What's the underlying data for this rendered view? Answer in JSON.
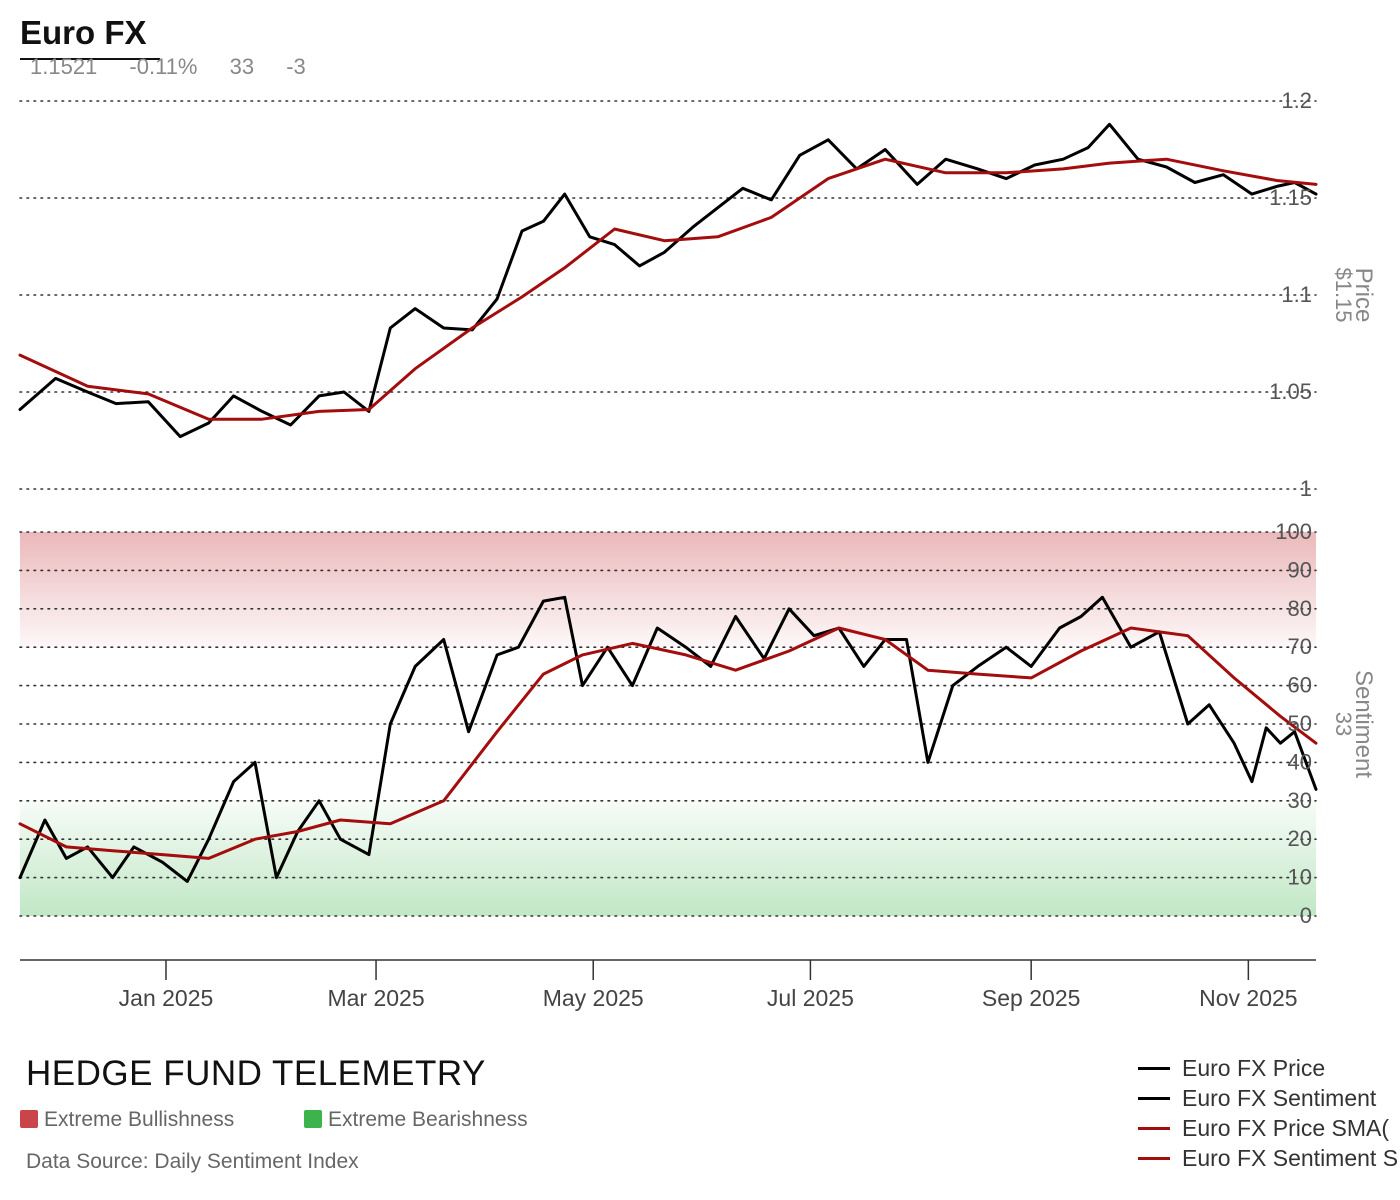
{
  "header": {
    "title": "Euro FX",
    "price": "1.1521",
    "change_pct": "-0.11%",
    "sentiment": "33",
    "sentiment_change": "-3"
  },
  "footer": {
    "brand": "HEDGE FUND TELEMETRY",
    "bull_label": "Extreme Bullishness",
    "bear_label": "Extreme Bearishness",
    "source": "Data Source: Daily Sentiment Index"
  },
  "legend": [
    {
      "label": "Euro FX Price",
      "color": "#000000"
    },
    {
      "label": "Euro FX Sentiment",
      "color": "#000000"
    },
    {
      "label": "Euro FX Price SMA(",
      "color": "#a30d0d"
    },
    {
      "label": "Euro FX Sentiment S",
      "color": "#a30d0d"
    }
  ],
  "colors": {
    "price": "#000000",
    "sma": "#a30d0d",
    "bull_zone": "#c9454a",
    "bear_zone": "#3cb44b"
  },
  "chart_data": [
    {
      "type": "line",
      "panel": "price",
      "ylabel": "Price",
      "ylabel_value": "$1.15",
      "ylim": [
        1.0,
        1.2
      ],
      "yticks": [
        "1.2",
        "1.15",
        "1.1",
        "1.05",
        "1"
      ],
      "grid": true,
      "x_ticks": [
        "Jan 2025",
        "Mar 2025",
        "May 2025",
        "Jul 2025",
        "Sep 2025",
        "Nov 2025"
      ],
      "x_tick_dates": [
        "2025-01-01",
        "2025-03-01",
        "2025-05-01",
        "2025-07-01",
        "2025-09-01",
        "2025-11-01"
      ],
      "x_range": [
        "2024-11-21",
        "2025-11-20"
      ],
      "series": [
        {
          "name": "Euro FX Price",
          "x": [
            "2024-11-21",
            "2024-12-01",
            "2024-12-10",
            "2024-12-18",
            "2024-12-27",
            "2025-01-05",
            "2025-01-13",
            "2025-01-20",
            "2025-01-28",
            "2025-02-05",
            "2025-02-13",
            "2025-02-20",
            "2025-02-27",
            "2025-03-05",
            "2025-03-12",
            "2025-03-20",
            "2025-03-28",
            "2025-04-04",
            "2025-04-11",
            "2025-04-17",
            "2025-04-23",
            "2025-04-30",
            "2025-05-07",
            "2025-05-14",
            "2025-05-21",
            "2025-05-29",
            "2025-06-05",
            "2025-06-12",
            "2025-06-20",
            "2025-06-28",
            "2025-07-06",
            "2025-07-14",
            "2025-07-22",
            "2025-07-31",
            "2025-08-08",
            "2025-08-17",
            "2025-08-25",
            "2025-09-02",
            "2025-09-10",
            "2025-09-17",
            "2025-09-23",
            "2025-10-01",
            "2025-10-09",
            "2025-10-17",
            "2025-10-25",
            "2025-11-02",
            "2025-11-09",
            "2025-11-14",
            "2025-11-20"
          ],
          "values": [
            1.041,
            1.057,
            1.05,
            1.044,
            1.045,
            1.027,
            1.034,
            1.048,
            1.04,
            1.033,
            1.048,
            1.05,
            1.04,
            1.083,
            1.093,
            1.083,
            1.082,
            1.098,
            1.133,
            1.138,
            1.152,
            1.13,
            1.126,
            1.115,
            1.122,
            1.135,
            1.145,
            1.155,
            1.149,
            1.172,
            1.18,
            1.165,
            1.175,
            1.157,
            1.17,
            1.165,
            1.16,
            1.167,
            1.17,
            1.176,
            1.188,
            1.17,
            1.166,
            1.158,
            1.162,
            1.152,
            1.156,
            1.158,
            1.152
          ]
        },
        {
          "name": "Euro FX Price SMA(",
          "x": [
            "2024-11-21",
            "2024-12-10",
            "2024-12-27",
            "2025-01-13",
            "2025-01-28",
            "2025-02-13",
            "2025-02-27",
            "2025-03-12",
            "2025-03-28",
            "2025-04-11",
            "2025-04-23",
            "2025-05-07",
            "2025-05-21",
            "2025-06-05",
            "2025-06-20",
            "2025-07-06",
            "2025-07-22",
            "2025-08-08",
            "2025-08-25",
            "2025-09-10",
            "2025-09-23",
            "2025-10-09",
            "2025-10-25",
            "2025-11-09",
            "2025-11-20"
          ],
          "values": [
            1.069,
            1.053,
            1.049,
            1.036,
            1.036,
            1.04,
            1.041,
            1.062,
            1.083,
            1.099,
            1.114,
            1.134,
            1.128,
            1.13,
            1.14,
            1.16,
            1.17,
            1.163,
            1.163,
            1.165,
            1.168,
            1.17,
            1.164,
            1.159,
            1.157
          ]
        }
      ]
    },
    {
      "type": "line",
      "panel": "sentiment",
      "ylabel": "Sentiment",
      "ylabel_value": "33",
      "ylim": [
        0,
        100
      ],
      "yticks": [
        "100",
        "90",
        "80",
        "70",
        "60",
        "50",
        "40",
        "30",
        "20",
        "10",
        "0"
      ],
      "grid": true,
      "bands": [
        {
          "name": "Extreme Bullishness",
          "from": 70,
          "to": 100
        },
        {
          "name": "Extreme Bearishness",
          "from": 0,
          "to": 30
        }
      ],
      "series": [
        {
          "name": "Euro FX Sentiment",
          "x": [
            "2024-11-21",
            "2024-11-28",
            "2024-12-04",
            "2024-12-10",
            "2024-12-17",
            "2024-12-23",
            "2024-12-31",
            "2025-01-07",
            "2025-01-13",
            "2025-01-20",
            "2025-01-26",
            "2025-02-01",
            "2025-02-07",
            "2025-02-13",
            "2025-02-19",
            "2025-02-27",
            "2025-03-05",
            "2025-03-12",
            "2025-03-20",
            "2025-03-27",
            "2025-04-04",
            "2025-04-10",
            "2025-04-17",
            "2025-04-23",
            "2025-04-28",
            "2025-05-05",
            "2025-05-12",
            "2025-05-19",
            "2025-05-27",
            "2025-06-03",
            "2025-06-10",
            "2025-06-18",
            "2025-06-25",
            "2025-07-02",
            "2025-07-09",
            "2025-07-16",
            "2025-07-22",
            "2025-07-28",
            "2025-08-03",
            "2025-08-10",
            "2025-08-17",
            "2025-08-25",
            "2025-09-01",
            "2025-09-09",
            "2025-09-15",
            "2025-09-21",
            "2025-09-29",
            "2025-10-07",
            "2025-10-15",
            "2025-10-21",
            "2025-10-28",
            "2025-11-02",
            "2025-11-06",
            "2025-11-10",
            "2025-11-14",
            "2025-11-20"
          ],
          "values": [
            10,
            25,
            15,
            18,
            10,
            18,
            14,
            9,
            20,
            35,
            40,
            10,
            22,
            30,
            20,
            16,
            50,
            65,
            72,
            48,
            68,
            70,
            82,
            83,
            60,
            70,
            60,
            75,
            70,
            65,
            78,
            67,
            80,
            73,
            75,
            65,
            72,
            72,
            40,
            60,
            65,
            70,
            65,
            75,
            78,
            83,
            70,
            74,
            50,
            55,
            45,
            35,
            49,
            45,
            48,
            33
          ]
        },
        {
          "name": "Euro FX Sentiment S",
          "x": [
            "2024-11-21",
            "2024-12-04",
            "2024-12-17",
            "2024-12-31",
            "2025-01-13",
            "2025-01-26",
            "2025-02-07",
            "2025-02-19",
            "2025-03-05",
            "2025-03-20",
            "2025-04-04",
            "2025-04-17",
            "2025-04-28",
            "2025-05-12",
            "2025-05-27",
            "2025-06-10",
            "2025-06-25",
            "2025-07-09",
            "2025-07-22",
            "2025-08-03",
            "2025-08-17",
            "2025-09-01",
            "2025-09-15",
            "2025-09-29",
            "2025-10-15",
            "2025-10-28",
            "2025-11-10",
            "2025-11-20"
          ],
          "values": [
            24,
            18,
            17,
            16,
            15,
            20,
            22,
            25,
            24,
            30,
            48,
            63,
            68,
            71,
            68,
            64,
            69,
            75,
            72,
            64,
            63,
            62,
            69,
            75,
            73,
            62,
            52,
            45
          ]
        }
      ]
    }
  ]
}
